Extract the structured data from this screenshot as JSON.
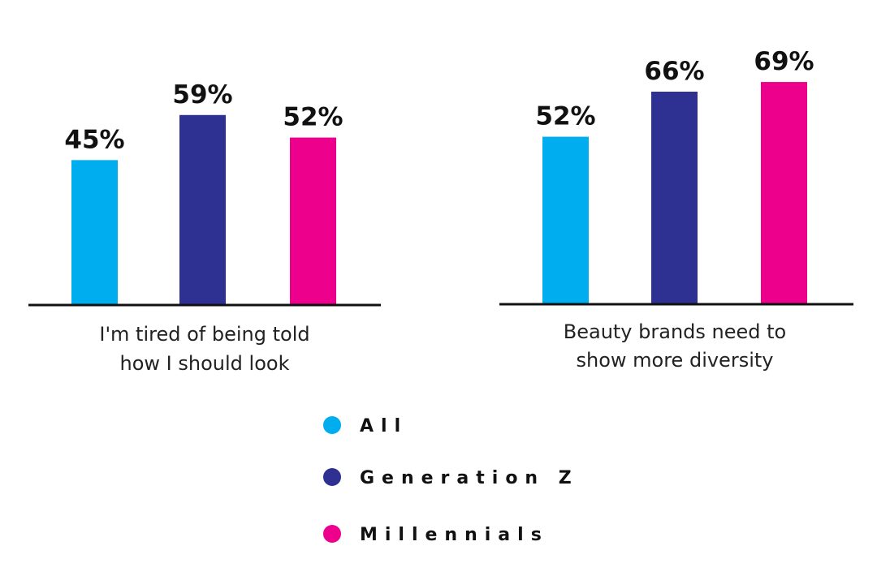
{
  "chart_data": {
    "type": "bar",
    "panels": [
      {
        "category_lines": [
          "I'm tired of being told",
          "how I should look"
        ],
        "values": [
          45,
          59,
          52
        ],
        "value_labels": [
          "45%",
          "59%",
          "52%"
        ]
      },
      {
        "category_lines": [
          "Beauty brands need to",
          "show more diversity"
        ],
        "values": [
          52,
          66,
          69
        ],
        "value_labels": [
          "52%",
          "66%",
          "69%"
        ]
      }
    ],
    "series": [
      {
        "name": "All",
        "color": "#00aeef"
      },
      {
        "name": "Generation Z",
        "color": "#2e3192"
      },
      {
        "name": "Millennials",
        "color": "#ec008c"
      }
    ],
    "ylim": [
      0,
      100
    ],
    "grid": false,
    "legend_position": "bottom-center"
  }
}
